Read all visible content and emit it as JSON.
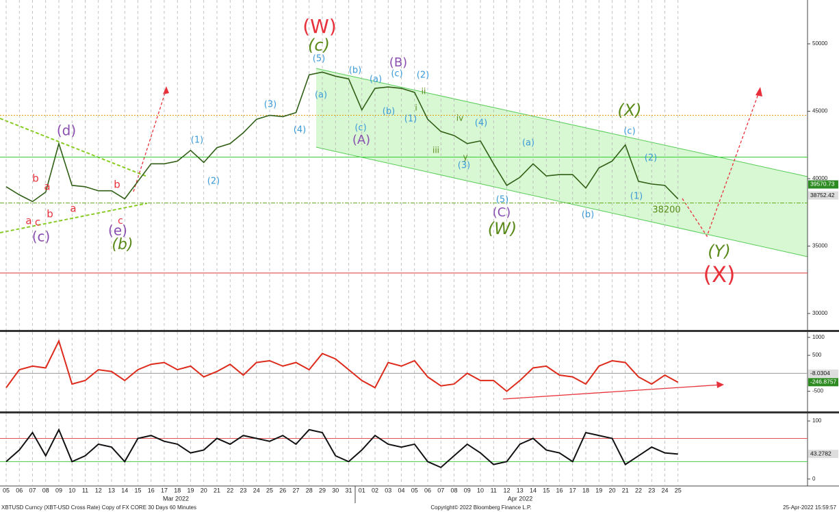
{
  "chart_data": [
    {
      "type": "line",
      "panel": "price",
      "categories": [
        "05",
        "06",
        "07",
        "08",
        "09",
        "10",
        "11",
        "12",
        "13",
        "14",
        "15",
        "16",
        "17",
        "18",
        "19",
        "20",
        "21",
        "22",
        "23",
        "24",
        "25",
        "26",
        "27",
        "28",
        "29",
        "30",
        "31",
        "01",
        "02",
        "03",
        "04",
        "05",
        "06",
        "07",
        "08",
        "09",
        "10",
        "11",
        "12",
        "13",
        "14",
        "15",
        "16",
        "17",
        "18",
        "19",
        "20",
        "21",
        "22",
        "23",
        "24",
        "25"
      ],
      "x_group_labels": [
        "Mar 2022",
        "Apr 2022"
      ],
      "series": [
        {
          "color": "#2f5e14",
          "values": [
            39400,
            38800,
            38300,
            39000,
            42600,
            39500,
            39400,
            39100,
            39100,
            38500,
            39800,
            41100,
            41100,
            41300,
            42100,
            41200,
            42300,
            42600,
            43400,
            44400,
            44700,
            44600,
            44900,
            47700,
            47900,
            47600,
            47400,
            45100,
            46700,
            46800,
            46700,
            46400,
            44400,
            43500,
            43200,
            42600,
            42800,
            41100,
            39500,
            40100,
            41100,
            40200,
            40300,
            40300,
            39300,
            40800,
            41300,
            42500,
            39800,
            39600,
            39500,
            38500
          ]
        }
      ],
      "ylim": [
        28780,
        53250
      ],
      "yticks": [
        30000,
        35000,
        40000,
        45000,
        50000
      ],
      "levels": [
        {
          "value": 44700,
          "color": "#e69500",
          "style": "dotted"
        },
        {
          "value": 41600,
          "color": "#33cc33",
          "style": "solid"
        },
        {
          "value": 38200,
          "color": "#66aa22",
          "style": "dashdot"
        },
        {
          "value": 33000,
          "color": "#dd3333",
          "style": "solid"
        }
      ],
      "last_labels": [
        {
          "value": 39570.73,
          "label": "39570.73",
          "color": "#2e8b22"
        },
        {
          "value": 38752.42,
          "label": "38752.42",
          "color": "#dddddd"
        }
      ],
      "annotations": [
        {
          "text": "(W)",
          "color": "#e8303a"
        },
        {
          "text": "(c)",
          "color": "#5a8a1a"
        },
        {
          "text": "(5)",
          "color": "#3a9ad9"
        },
        {
          "text": "(a)",
          "color": "#3a9ad9"
        },
        {
          "text": "(b)",
          "color": "#3a9ad9"
        },
        {
          "text": "(a)",
          "color": "#3a9ad9"
        },
        {
          "text": "(c)",
          "color": "#3a9ad9"
        },
        {
          "text": "(B)",
          "color": "#8a4fb0"
        },
        {
          "text": "(2)",
          "color": "#3a9ad9"
        },
        {
          "text": "(b)",
          "color": "#3a9ad9"
        },
        {
          "text": "(1)",
          "color": "#3a9ad9"
        },
        {
          "text": "(c)",
          "color": "#3a9ad9"
        },
        {
          "text": "(A)",
          "color": "#8a4fb0"
        },
        {
          "text": "(4)",
          "color": "#3a9ad9"
        },
        {
          "text": "(3)",
          "color": "#3a9ad9"
        },
        {
          "text": "(1)",
          "color": "#3a9ad9"
        },
        {
          "text": "(2)",
          "color": "#3a9ad9"
        },
        {
          "text": "(d)",
          "color": "#8a4fb0"
        },
        {
          "text": "(e)",
          "color": "#8a4fb0"
        },
        {
          "text": "c",
          "color": "#e8303a"
        },
        {
          "text": "(b)",
          "color": "#5a8a1a"
        },
        {
          "text": "(c)",
          "color": "#8a4fb0"
        },
        {
          "text": "a",
          "color": "#e8303a"
        },
        {
          "text": "c",
          "color": "#e8303a"
        },
        {
          "text": "b",
          "color": "#e8303a"
        },
        {
          "text": "a",
          "color": "#e8303a"
        },
        {
          "text": "b",
          "color": "#e8303a"
        },
        {
          "text": "a",
          "color": "#e8303a"
        },
        {
          "text": "b",
          "color": "#e8303a"
        },
        {
          "text": "iii",
          "color": "#5a8a1a"
        },
        {
          "text": "iv",
          "color": "#5a8a1a"
        },
        {
          "text": "y",
          "color": "#5a8a1a"
        },
        {
          "text": "(3)",
          "color": "#3a9ad9"
        },
        {
          "text": "(4)",
          "color": "#3a9ad9"
        },
        {
          "text": "(5)",
          "color": "#3a9ad9"
        },
        {
          "text": "(C)",
          "color": "#8a4fb0"
        },
        {
          "text": "(W)",
          "color": "#5a8a1a"
        },
        {
          "text": "(a)",
          "color": "#3a9ad9"
        },
        {
          "text": "(b)",
          "color": "#3a9ad9"
        },
        {
          "text": "(X)",
          "color": "#5a8a1a"
        },
        {
          "text": "(c)",
          "color": "#3a9ad9"
        },
        {
          "text": "(2)",
          "color": "#3a9ad9"
        },
        {
          "text": "(1)",
          "color": "#3a9ad9"
        },
        {
          "text": "(Y)",
          "color": "#5a8a1a"
        },
        {
          "text": "(X)",
          "color": "#e8303a"
        },
        {
          "text": "38200",
          "color": "#5a8a1a"
        },
        {
          "text": "i",
          "color": "#5a8a1a"
        },
        {
          "text": "ii",
          "color": "#5a8a1a"
        }
      ]
    },
    {
      "type": "line",
      "panel": "momentum",
      "series": [
        {
          "color": "#dd2a1a",
          "values": [
            -400,
            100,
            200,
            150,
            900,
            -300,
            -200,
            100,
            50,
            -200,
            100,
            250,
            300,
            100,
            200,
            -100,
            50,
            250,
            -50,
            300,
            350,
            200,
            300,
            100,
            550,
            400,
            100,
            -200,
            -400,
            300,
            200,
            350,
            -100,
            -350,
            -300,
            0,
            -200,
            -200,
            -500,
            -200,
            150,
            200,
            -50,
            -100,
            -300,
            200,
            350,
            300,
            -100,
            -300,
            -50,
            -250
          ]
        }
      ],
      "ylim": [
        -1060,
        1150
      ],
      "yticks": [
        -500,
        500,
        1000
      ],
      "levels": [
        {
          "value": 0,
          "color": "#999999",
          "style": "solid"
        }
      ],
      "last_labels": [
        {
          "value": -8.0304,
          "label": "-8.0304",
          "color": "#dddddd"
        },
        {
          "value": -246.8757,
          "label": "-246.8757",
          "color": "#2e8b22"
        }
      ]
    },
    {
      "type": "line",
      "panel": "rsi",
      "series": [
        {
          "color": "#111111",
          "values": [
            30,
            50,
            80,
            40,
            85,
            30,
            40,
            60,
            55,
            30,
            70,
            75,
            65,
            60,
            45,
            50,
            70,
            60,
            75,
            70,
            65,
            75,
            60,
            85,
            80,
            40,
            30,
            50,
            75,
            60,
            55,
            60,
            30,
            20,
            40,
            60,
            45,
            25,
            30,
            60,
            70,
            50,
            45,
            30,
            80,
            75,
            70,
            25,
            40,
            55,
            45,
            43
          ]
        }
      ],
      "ylim": [
        -12,
        113
      ],
      "yticks": [
        0,
        100
      ],
      "levels": [
        {
          "value": 70,
          "color": "#e05050",
          "style": "solid"
        },
        {
          "value": 30,
          "color": "#44cc44",
          "style": "solid"
        }
      ],
      "last_labels": [
        {
          "value": 43.2782,
          "label": "43.2782",
          "color": "#dddddd"
        }
      ]
    }
  ],
  "footer": {
    "left": "XBTUSD Curncy (XBT-USD Cross Rate) Copy of FX CORE 30 Days 60 Minutes",
    "center": "Copyright© 2022 Bloomberg Finance L.P.",
    "right": "25-Apr-2022 15:59:57"
  }
}
